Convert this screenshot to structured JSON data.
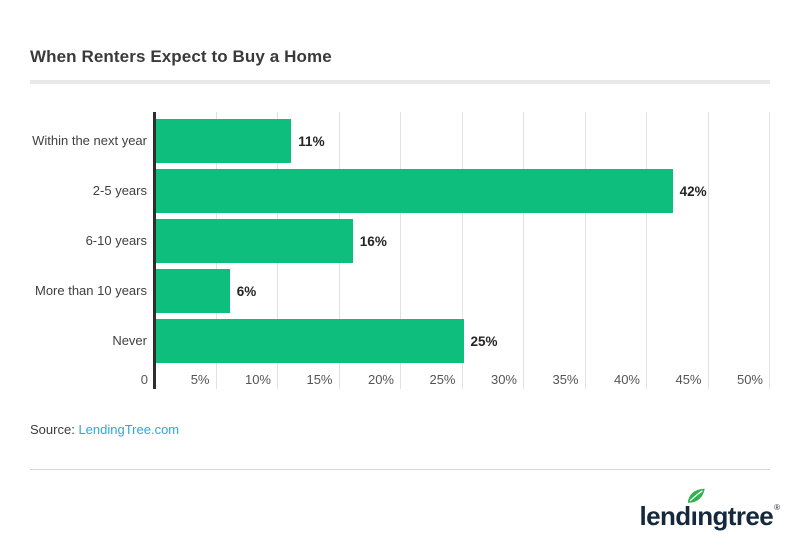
{
  "title": "When Renters Expect to Buy a Home",
  "chart_data": {
    "type": "bar",
    "orientation": "horizontal",
    "title": "When Renters Expect to Buy a Home",
    "categories": [
      "Within the next year",
      "2-5 years",
      "6-10 years",
      "More than 10 years",
      "Never"
    ],
    "values": [
      11,
      42,
      16,
      6,
      25
    ],
    "value_labels": [
      "11%",
      "42%",
      "16%",
      "6%",
      "25%"
    ],
    "x_ticks": [
      {
        "value": 0,
        "label": "0"
      },
      {
        "value": 5,
        "label": "5%"
      },
      {
        "value": 10,
        "label": "10%"
      },
      {
        "value": 15,
        "label": "15%"
      },
      {
        "value": 20,
        "label": "20%"
      },
      {
        "value": 25,
        "label": "25%"
      },
      {
        "value": 30,
        "label": "30%"
      },
      {
        "value": 35,
        "label": "35%"
      },
      {
        "value": 40,
        "label": "40%"
      },
      {
        "value": 45,
        "label": "45%"
      },
      {
        "value": 50,
        "label": "50%"
      }
    ],
    "xlim": [
      0,
      50
    ],
    "grid": true,
    "legend": false,
    "bar_color": "#0dbe7c"
  },
  "source": {
    "prefix": "Source:",
    "link_text": "LendingTree.com"
  },
  "logo": {
    "text": "lendingtree",
    "display_pre": "lend",
    "display_i": "ı",
    "display_post": "ngtree",
    "registered": "®",
    "leaf_icon": "leaf-icon"
  },
  "colors": {
    "bar_green": "#0dbe7c",
    "link_blue": "#2aa9e0",
    "logo_navy": "#16283c",
    "leaf_green": "#2eb34f",
    "axis_dark": "#2e2e2e"
  }
}
